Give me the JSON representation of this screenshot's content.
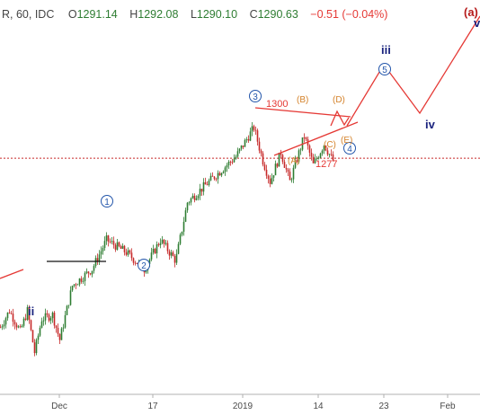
{
  "header": {
    "symbol_text": "R, 60, IDC",
    "open_label": "O",
    "open": "1291.14",
    "high_label": "H",
    "high": "1292.08",
    "low_label": "L",
    "low": "1290.10",
    "close_label": "C",
    "close": "1290.63",
    "change": "−0.51 (−0.04%)"
  },
  "colors": {
    "up": "#2e7d32",
    "down": "#c62828",
    "annotation_red": "#e53935",
    "wave_blue": "#2255aa",
    "wave_navy": "#1a237e",
    "correction_orange": "#d4822a",
    "price_line": "#c62828",
    "change_red": "#e53935"
  },
  "annotations": {
    "level_high": "1300",
    "level_low": "1277",
    "wave_labels": {
      "w1": "1",
      "w2": "2",
      "w3": "3",
      "w4": "4",
      "w5": "5",
      "wii": "ii",
      "wiii": "iii",
      "wiv": "iv",
      "wa": "(a)",
      "wv": "v",
      "cA": "(A)",
      "cB": "(B)",
      "cC": "(C)",
      "cD": "(D)",
      "cE": "(E)"
    }
  },
  "chart_data": {
    "type": "candlestick",
    "interval": "60",
    "ylim": [
      1238,
      1320
    ],
    "grid": false,
    "x_tick_labels": [
      "Dec",
      "17",
      "2019",
      "14",
      "23",
      "Feb"
    ],
    "horizontal_levels": [
      1300,
      1277
    ],
    "current_price_line": 1290.63,
    "waypoints": [
      {
        "t": 0,
        "p": 1250
      },
      {
        "t": 10,
        "p": 1254
      },
      {
        "t": 22,
        "p": 1249
      },
      {
        "t": 30,
        "p": 1254
      },
      {
        "t": 38,
        "p": 1244
      },
      {
        "t": 46,
        "p": 1252
      },
      {
        "t": 58,
        "p": 1253
      },
      {
        "t": 66,
        "p": 1247
      },
      {
        "t": 80,
        "p": 1260
      },
      {
        "t": 102,
        "p": 1264
      },
      {
        "t": 118,
        "p": 1271
      },
      {
        "t": 140,
        "p": 1268
      },
      {
        "t": 160,
        "p": 1264
      },
      {
        "t": 178,
        "p": 1271
      },
      {
        "t": 195,
        "p": 1266
      },
      {
        "t": 208,
        "p": 1280
      },
      {
        "t": 232,
        "p": 1285
      },
      {
        "t": 262,
        "p": 1291
      },
      {
        "t": 282,
        "p": 1298
      },
      {
        "t": 292,
        "p": 1290
      },
      {
        "t": 300,
        "p": 1285
      },
      {
        "t": 312,
        "p": 1292
      },
      {
        "t": 322,
        "p": 1285
      },
      {
        "t": 338,
        "p": 1296
      },
      {
        "t": 348,
        "p": 1289
      },
      {
        "t": 360,
        "p": 1294
      },
      {
        "t": 370,
        "p": 1290
      }
    ]
  }
}
